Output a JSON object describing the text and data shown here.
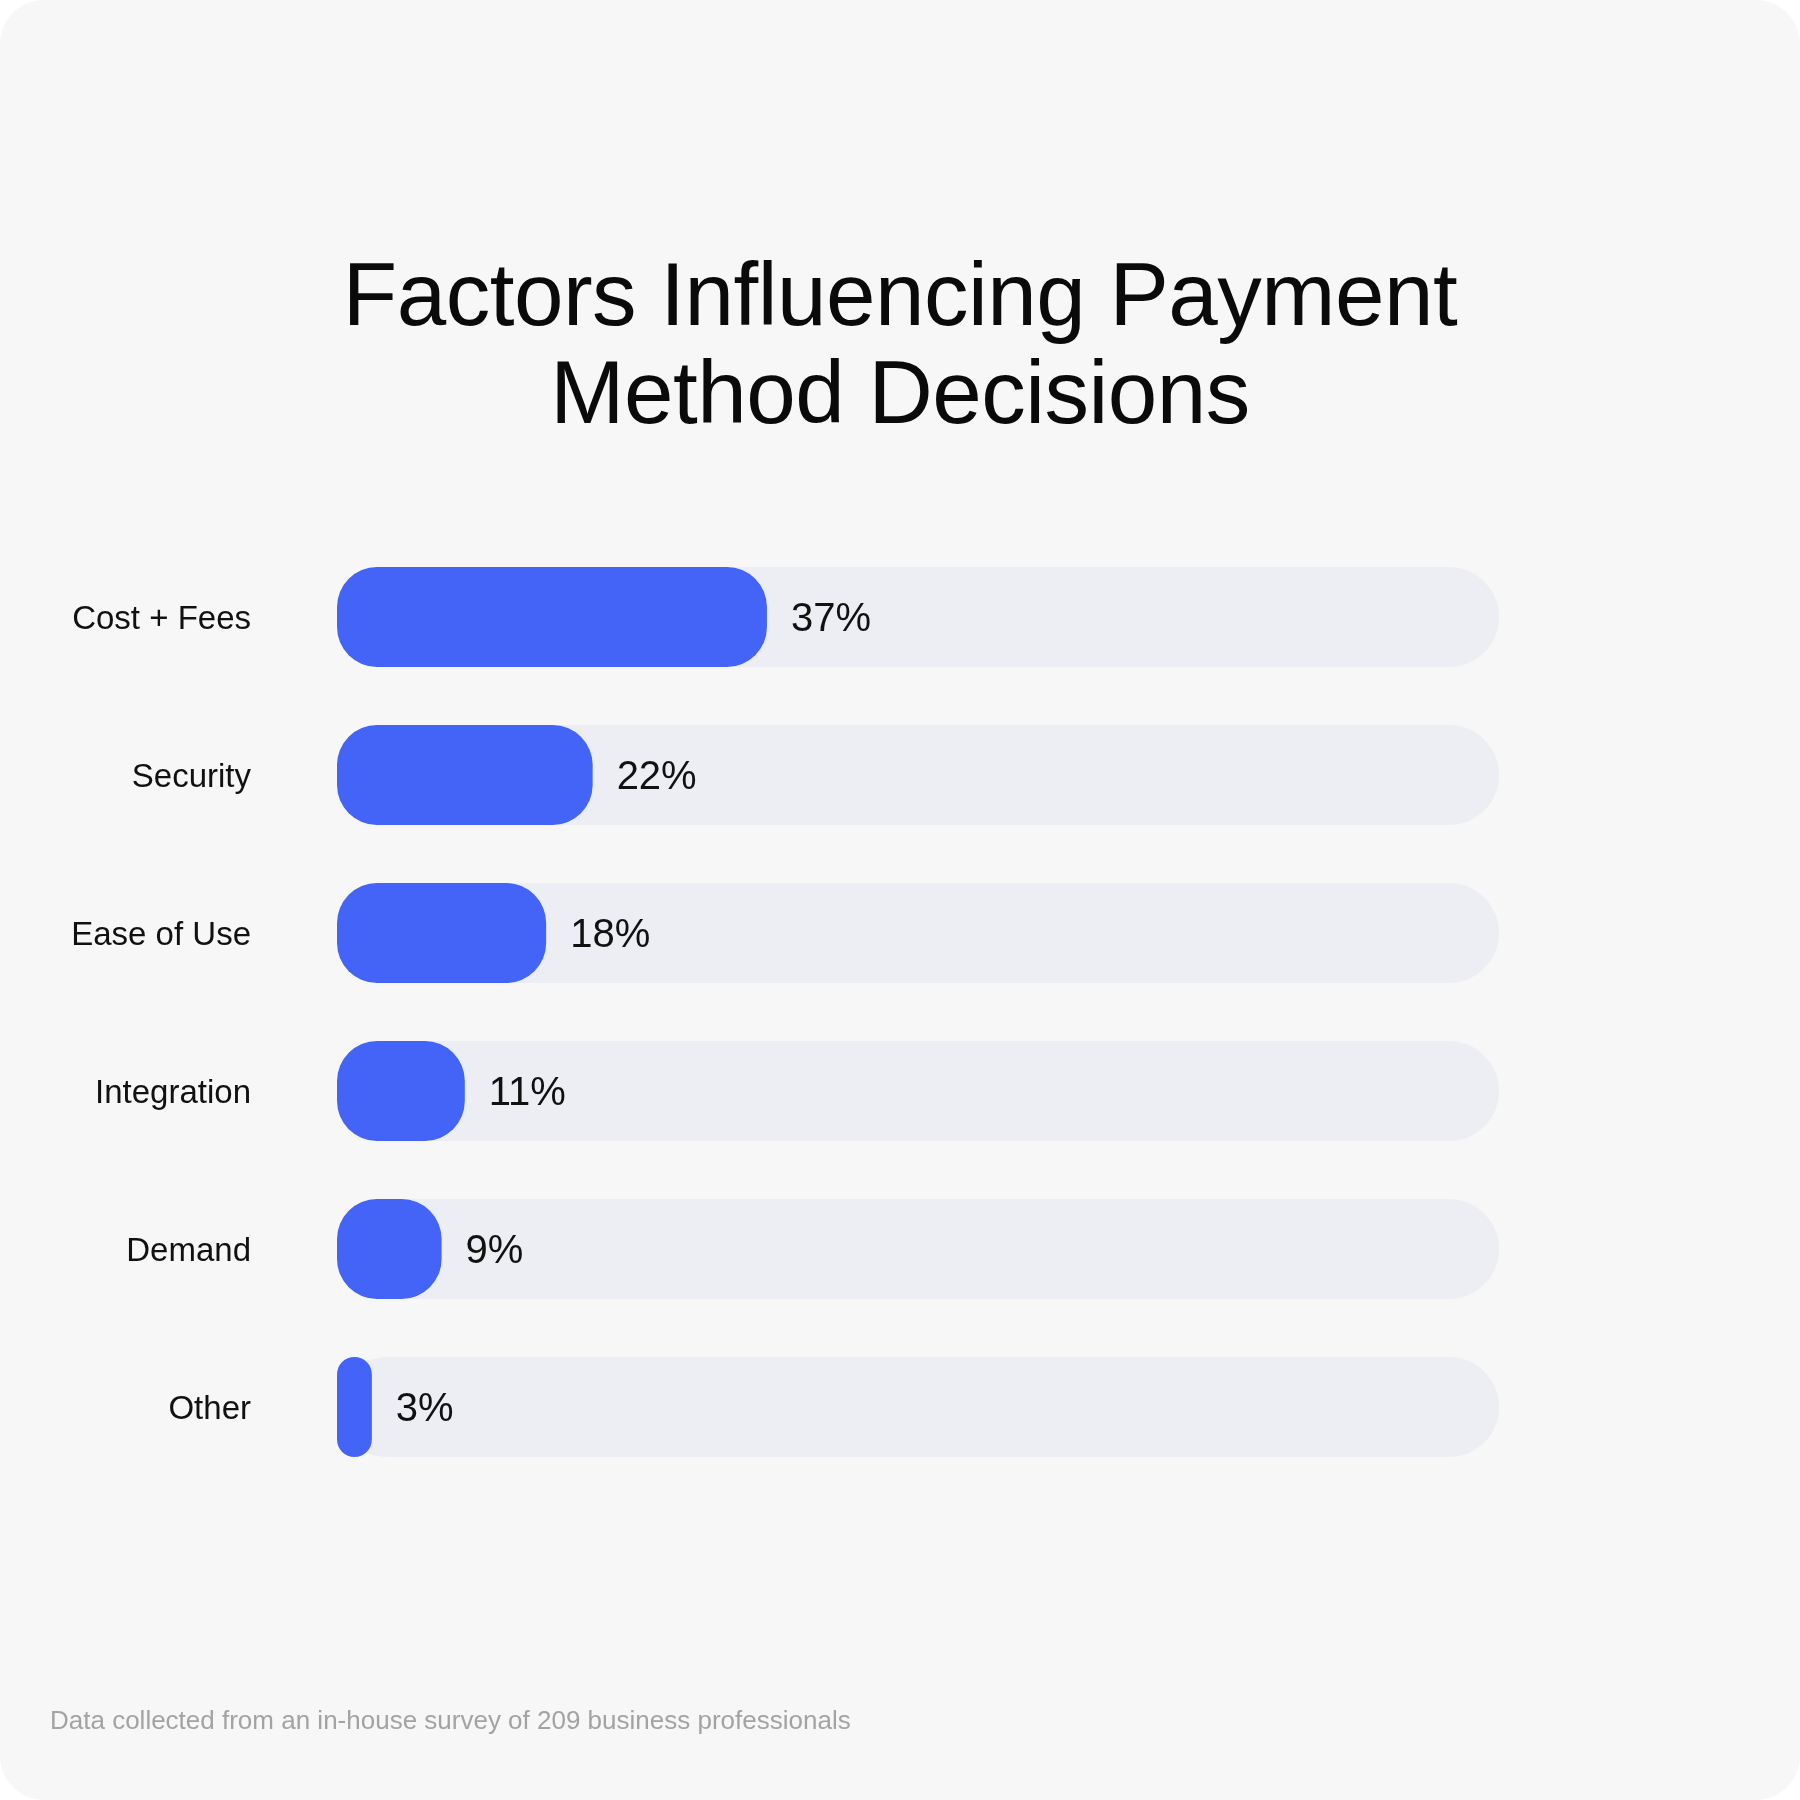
{
  "chart_data": {
    "type": "bar",
    "orientation": "horizontal",
    "title": "Factors Influencing Payment Method Decisions",
    "categories": [
      "Cost + Fees",
      "Security",
      "Ease of Use",
      "Integration",
      "Demand",
      "Other"
    ],
    "values": [
      37,
      22,
      18,
      11,
      9,
      3
    ],
    "value_labels": [
      "37%",
      "22%",
      "18%",
      "11%",
      "9%",
      "3%"
    ],
    "color": "#4364f7",
    "tick_labels": "y",
    "annotations": [
      "Data collected from an in-house survey of 209 business professionals"
    ]
  }
}
